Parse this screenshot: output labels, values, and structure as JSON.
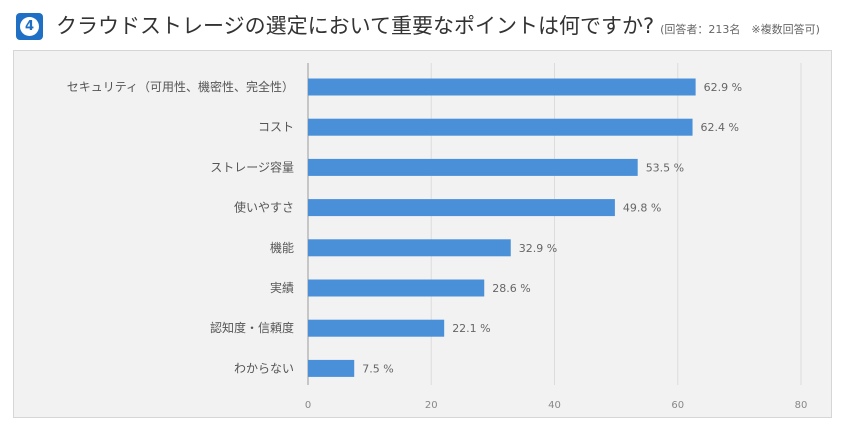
{
  "header": {
    "badge_number": "4",
    "title": "クラウドストレージの選定において重要なポイントは何ですか?",
    "note": "(回答者：213名　※複数回答可)"
  },
  "colors": {
    "bar": "#4a90d9",
    "badge": "#1f6fc5",
    "panel_background": "#f2f2f2"
  },
  "chart_data": {
    "type": "bar",
    "orientation": "horizontal",
    "categories": [
      "セキュリティ（可用性、機密性、完全性）",
      "コスト",
      "ストレージ容量",
      "使いやすさ",
      "機能",
      "実績",
      "認知度・信頼度",
      "わからない"
    ],
    "values": [
      62.9,
      62.4,
      53.5,
      49.8,
      32.9,
      28.6,
      22.1,
      7.5
    ],
    "value_labels": [
      "62.9 %",
      "62.4 %",
      "53.5 %",
      "49.8 %",
      "32.9 %",
      "28.6 %",
      "22.1 %",
      "7.5 %"
    ],
    "x_ticks": [
      0,
      20,
      40,
      60,
      80
    ],
    "xlim": [
      0,
      80
    ],
    "grid": true
  }
}
